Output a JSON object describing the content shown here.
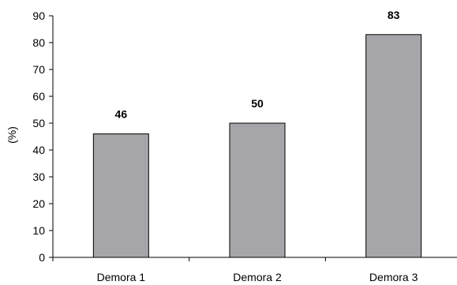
{
  "chart_data": {
    "type": "bar",
    "categories": [
      "Demora 1",
      "Demora 2",
      "Demora 3"
    ],
    "values": [
      46,
      50,
      83
    ],
    "data_labels": [
      "46",
      "50",
      "83"
    ],
    "title": "",
    "xlabel": "",
    "ylabel": "(%)",
    "ylim": [
      0,
      90
    ],
    "yticks": [
      0,
      10,
      20,
      30,
      40,
      50,
      60,
      70,
      80,
      90
    ],
    "grid": false,
    "legend": "none",
    "colors": {
      "bar_fill": "#a6a6aa",
      "bar_stroke": "#000000",
      "axis": "#000000"
    }
  }
}
